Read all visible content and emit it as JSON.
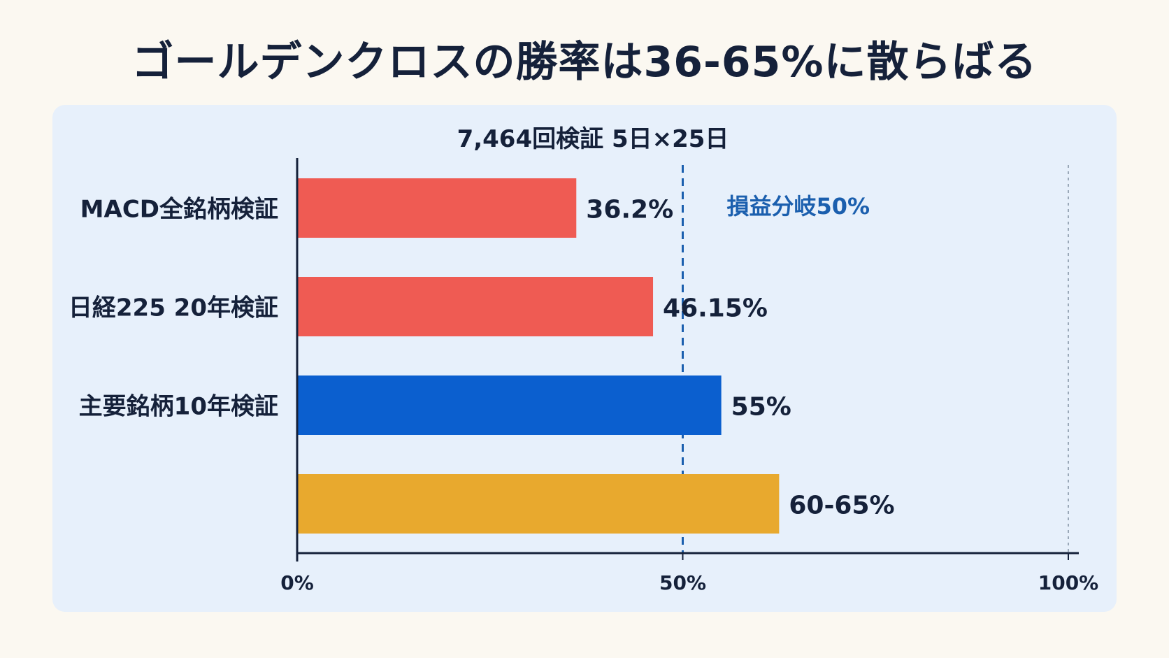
{
  "title": "ゴールデンクロスの勝率は36-65%に散らばる",
  "chart_data": {
    "type": "bar",
    "orientation": "horizontal",
    "subtitle": "7,464回検証 5日×25日",
    "categories": [
      "MACD全銘柄検証",
      "日経225 20年検証",
      "主要銘柄10年検証",
      ""
    ],
    "values": [
      36.2,
      46.15,
      55,
      62.5
    ],
    "value_ranges": [
      null,
      null,
      null,
      [
        60,
        65
      ]
    ],
    "value_labels": [
      "36.2%",
      "46.15%",
      "55%",
      "60-65%"
    ],
    "bar_colors": [
      "#ef5b53",
      "#ef5b53",
      "#0b5fcf",
      "#e8a92e"
    ],
    "xlim": [
      0,
      100
    ],
    "x_ticks": [
      {
        "value": 0,
        "label": "0%"
      },
      {
        "value": 50,
        "label": "50%"
      },
      {
        "value": 100,
        "label": "100%"
      }
    ],
    "reference_line": {
      "value": 50,
      "label": "損益分岐50%",
      "color": "#1b5fae",
      "style": "dashed"
    },
    "secondary_line": {
      "value": 100,
      "style": "dotted",
      "color": "#9aa8b8"
    },
    "grid": false,
    "legend": "none"
  }
}
